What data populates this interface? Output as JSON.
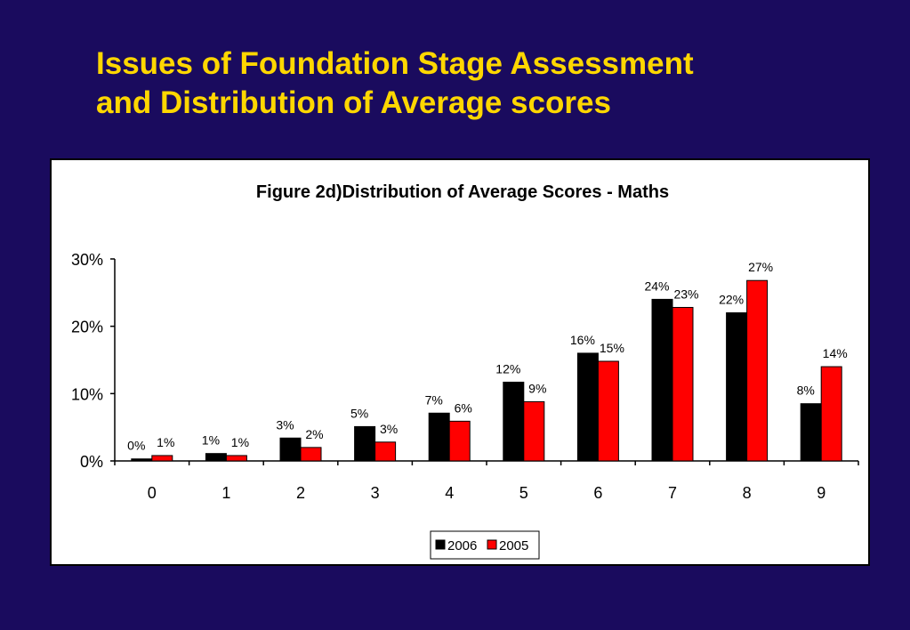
{
  "slide": {
    "title_line1": "Issues of Foundation Stage Assessment",
    "title_line2": "and Distribution of Average scores"
  },
  "colors": {
    "background": "#1a0b5e",
    "title": "#ffd700",
    "series_2006": "#000000",
    "series_2005": "#ff0000"
  },
  "chart_data": {
    "type": "bar",
    "title": "Figure 2d)Distribution of Average Scores - Maths",
    "xlabel": "",
    "ylabel": "",
    "categories": [
      "0",
      "1",
      "2",
      "3",
      "4",
      "5",
      "6",
      "7",
      "8",
      "9"
    ],
    "ylim": [
      0,
      30
    ],
    "yticks": [
      "0%",
      "10%",
      "20%",
      "30%"
    ],
    "grid": false,
    "legend_position": "bottom",
    "series": [
      {
        "name": "2006",
        "color": "#000000",
        "values": [
          0.3,
          1.1,
          3.4,
          5.1,
          7.1,
          11.7,
          16.0,
          24.0,
          22.0,
          8.5
        ],
        "labels": [
          "0%",
          "1%",
          "3%",
          "5%",
          "7%",
          "12%",
          "16%",
          "24%",
          "22%",
          "8%"
        ]
      },
      {
        "name": "2005",
        "color": "#ff0000",
        "values": [
          0.8,
          0.8,
          2.0,
          2.8,
          5.9,
          8.8,
          14.8,
          22.8,
          26.8,
          14.0
        ],
        "labels": [
          "1%",
          "1%",
          "2%",
          "3%",
          "6%",
          "9%",
          "15%",
          "23%",
          "27%",
          "14%"
        ]
      }
    ]
  }
}
